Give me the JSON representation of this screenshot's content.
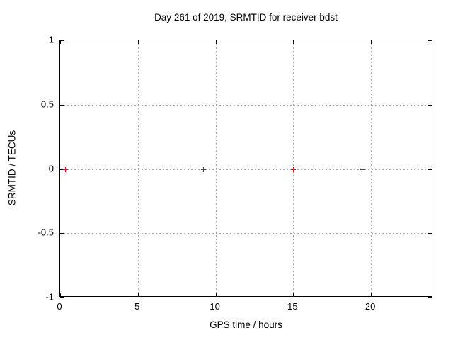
{
  "chart_data": {
    "type": "scatter",
    "title": "Day 261 of 2019, SRMTID for receiver bdst",
    "xlabel": "GPS time / hours",
    "ylabel": "SRMTID / TECUs",
    "xlim": [
      0,
      24
    ],
    "ylim": [
      -1,
      1
    ],
    "xticks": [
      0,
      5,
      10,
      15,
      20
    ],
    "xtick_labels": [
      "0",
      "5",
      "10",
      "15",
      "20"
    ],
    "yticks": [
      1,
      0.5,
      0,
      -0.5,
      -1
    ],
    "ytick_labels": [
      "1",
      "0.5",
      "0",
      "-0.5",
      "-1"
    ],
    "grid": true,
    "grid_style": "dashed",
    "legend": "none",
    "series": [
      {
        "marker": "plus",
        "color": "#ff0000",
        "points": [
          {
            "x": 0.3,
            "y": 0
          },
          {
            "x": 9.2,
            "y": 0
          },
          {
            "x": 15.0,
            "y": 0
          },
          {
            "x": 19.4,
            "y": 0
          }
        ]
      }
    ],
    "colors": {
      "background": "#ffffff",
      "frame": "#000000",
      "grid": "#a8a8a8",
      "text": "#000000",
      "marker": "#ff0000"
    }
  }
}
